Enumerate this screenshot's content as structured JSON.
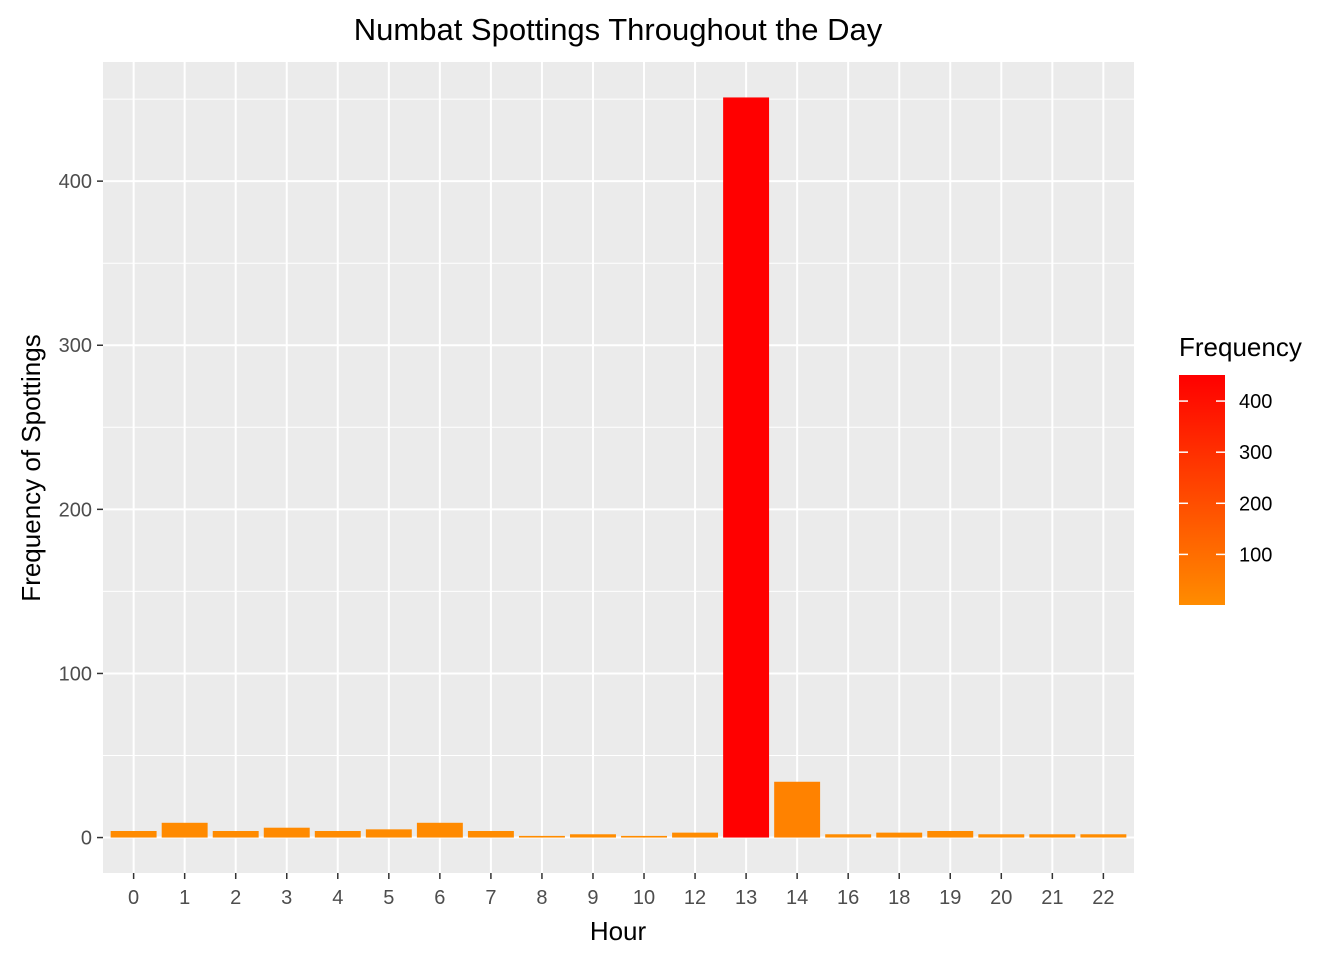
{
  "chart_data": {
    "type": "bar",
    "title": "Numbat Spottings Throughout the Day",
    "xlabel": "Hour",
    "ylabel": "Frequency of Spottings",
    "categories": [
      "0",
      "1",
      "2",
      "3",
      "4",
      "5",
      "6",
      "7",
      "8",
      "9",
      "10",
      "12",
      "13",
      "14",
      "16",
      "18",
      "19",
      "20",
      "21",
      "22"
    ],
    "values": [
      4,
      9,
      4,
      6,
      4,
      5,
      9,
      4,
      1,
      2,
      1,
      3,
      451,
      34,
      2,
      3,
      4,
      2,
      2,
      2
    ],
    "ylim": [
      -21.6,
      472.6
    ],
    "yticks": [
      0,
      100,
      200,
      300,
      400
    ],
    "grid": true,
    "legend": {
      "title": "Frequency",
      "placement": "right",
      "ticks": [
        100,
        200,
        300,
        400
      ],
      "range": [
        1,
        451
      ]
    },
    "colors": {
      "low": "#ff8c00",
      "high": "#ff0000",
      "panel": "#ebebeb",
      "grid_major": "#ffffff"
    }
  }
}
